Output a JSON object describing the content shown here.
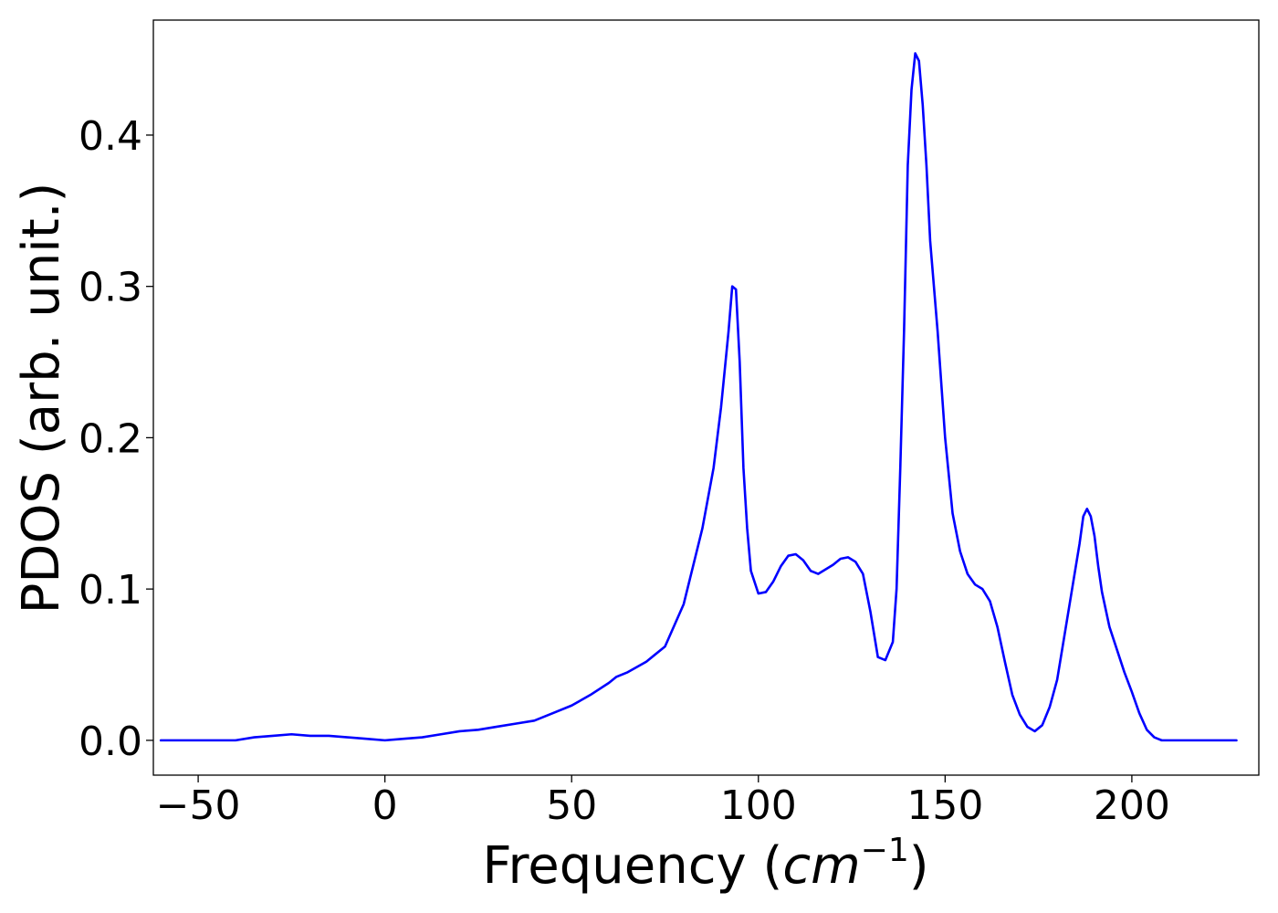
{
  "chart_data": {
    "type": "line",
    "title": "",
    "xlabel_main": "Frequency (",
    "xlabel_unit": "cm",
    "xlabel_exp": "−1",
    "xlabel_close": ")",
    "ylabel": "PDOS (arb. unit.)",
    "xlim": [
      -62,
      234
    ],
    "ylim": [
      -0.023,
      0.476
    ],
    "xticks": [
      -50,
      0,
      50,
      100,
      150,
      200
    ],
    "xtick_labels": [
      "−50",
      "0",
      "50",
      "100",
      "150",
      "200"
    ],
    "yticks": [
      0.0,
      0.1,
      0.2,
      0.3,
      0.4
    ],
    "ytick_labels": [
      "0.0",
      "0.1",
      "0.2",
      "0.3",
      "0.4"
    ],
    "grid": false,
    "legend": null,
    "series": [
      {
        "color": "#0000ff",
        "x": [
          -60,
          -50,
          -40,
          -35,
          -30,
          -25,
          -20,
          -15,
          -10,
          -5,
          0,
          5,
          10,
          15,
          20,
          25,
          30,
          35,
          40,
          45,
          50,
          55,
          60,
          62,
          65,
          70,
          72,
          75,
          80,
          85,
          88,
          90,
          92,
          93,
          94,
          95,
          96,
          97,
          98,
          100,
          102,
          104,
          106,
          108,
          110,
          112,
          114,
          116,
          118,
          120,
          122,
          124,
          126,
          128,
          130,
          132,
          134,
          136,
          137,
          138,
          139,
          140,
          141,
          142,
          143,
          144,
          145,
          146,
          148,
          150,
          152,
          154,
          156,
          158,
          160,
          162,
          164,
          166,
          168,
          170,
          172,
          174,
          176,
          178,
          180,
          182,
          184,
          186,
          187,
          188,
          189,
          190,
          191,
          192,
          194,
          196,
          198,
          200,
          202,
          204,
          206,
          208,
          210,
          215,
          220,
          228
        ],
        "y": [
          0.0,
          0.0,
          0.0,
          0.002,
          0.003,
          0.004,
          0.003,
          0.003,
          0.002,
          0.001,
          0.0,
          0.001,
          0.002,
          0.004,
          0.006,
          0.007,
          0.009,
          0.011,
          0.013,
          0.018,
          0.023,
          0.03,
          0.038,
          0.042,
          0.045,
          0.052,
          0.056,
          0.062,
          0.09,
          0.14,
          0.18,
          0.22,
          0.27,
          0.3,
          0.298,
          0.25,
          0.18,
          0.14,
          0.112,
          0.097,
          0.098,
          0.105,
          0.115,
          0.122,
          0.123,
          0.119,
          0.112,
          0.11,
          0.113,
          0.116,
          0.12,
          0.121,
          0.118,
          0.11,
          0.085,
          0.055,
          0.053,
          0.065,
          0.1,
          0.18,
          0.27,
          0.38,
          0.43,
          0.454,
          0.449,
          0.42,
          0.38,
          0.33,
          0.27,
          0.2,
          0.15,
          0.125,
          0.11,
          0.103,
          0.1,
          0.092,
          0.075,
          0.052,
          0.03,
          0.017,
          0.009,
          0.006,
          0.01,
          0.022,
          0.04,
          0.07,
          0.1,
          0.13,
          0.148,
          0.153,
          0.148,
          0.135,
          0.115,
          0.098,
          0.075,
          0.06,
          0.045,
          0.032,
          0.018,
          0.007,
          0.002,
          0.0,
          0.0,
          0.0,
          0.0,
          0.0
        ]
      }
    ]
  }
}
